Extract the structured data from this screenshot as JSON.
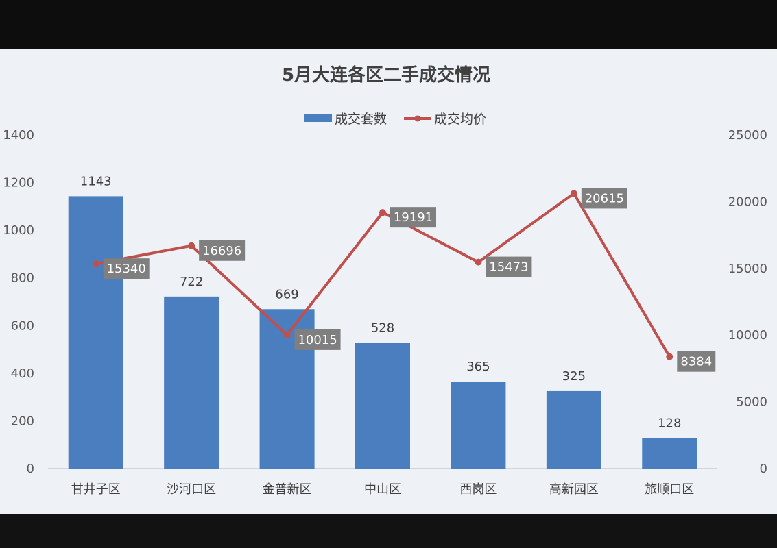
{
  "chart_data": {
    "type": "bar+line",
    "title": "5月大连各区二手成交情况",
    "categories": [
      "甘井子区",
      "沙河口区",
      "金普新区",
      "中山区",
      "西岗区",
      "高新园区",
      "旅顺口区"
    ],
    "series": [
      {
        "name": "成交套数",
        "type": "bar",
        "axis": "left",
        "values": [
          1143,
          722,
          669,
          528,
          365,
          325,
          128
        ],
        "color": "#4a7ebf"
      },
      {
        "name": "成交均价",
        "type": "line",
        "axis": "right",
        "values": [
          15340,
          16696,
          10015,
          19191,
          15473,
          20615,
          8384
        ],
        "color": "#c0504d"
      }
    ],
    "y_left": {
      "min": 0,
      "max": 1400,
      "ticks": [
        "0",
        "200",
        "400",
        "600",
        "800",
        "1000",
        "1200",
        "1400"
      ]
    },
    "y_right": {
      "min": 0,
      "max": 25000,
      "ticks": [
        "0",
        "5000",
        "10000",
        "15000",
        "20000",
        "25000"
      ]
    },
    "legend_position": "top-center",
    "grid": false,
    "data_label_box_color": "#7f7f7f"
  }
}
